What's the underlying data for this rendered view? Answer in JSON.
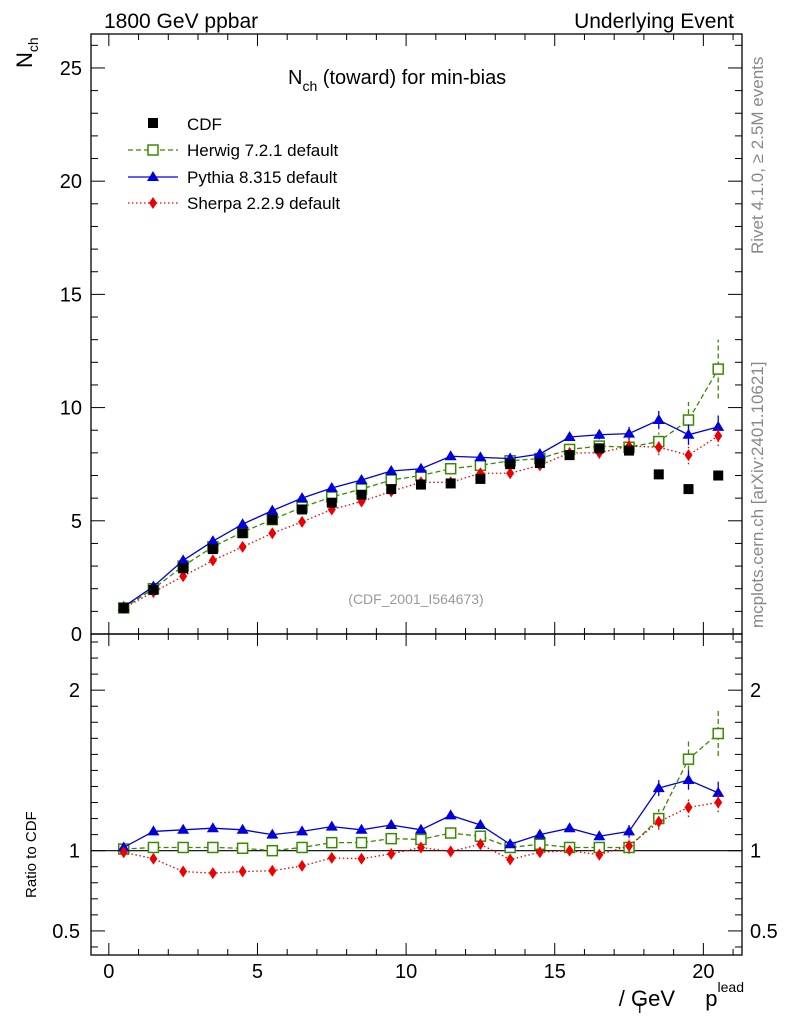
{
  "header": {
    "left": "1800 GeV ppbar",
    "right": "Underlying Event"
  },
  "side_text": {
    "upper": "Rivet 4.1.0, ≥ 2.5M events",
    "lower": "mcplots.cern.ch [arXiv:2401.10621]"
  },
  "watermark": "(CDF_2001_I564673)",
  "colors": {
    "cdf": "#000000",
    "herwig": "#3a8a00",
    "pythia": "#0000dd",
    "sherpa": "#ee0000"
  },
  "chart_data": [
    {
      "type": "scatter",
      "title": {
        "main": "N",
        "sub": "ch",
        "rest": " (toward) for min-bias"
      },
      "ylabel": {
        "main": "N",
        "sub": "ch"
      },
      "xlim": [
        -0.6,
        21.3
      ],
      "ylim": [
        0,
        26.5
      ],
      "yticks": [
        "0",
        "5",
        "10",
        "15",
        "20",
        "25"
      ],
      "ytick_values": [
        0,
        5,
        10,
        15,
        20,
        25
      ],
      "x": [
        0.5,
        1.5,
        2.5,
        3.5,
        4.5,
        5.5,
        6.5,
        7.5,
        8.5,
        9.5,
        10.5,
        11.5,
        12.5,
        13.5,
        14.5,
        15.5,
        16.5,
        17.5,
        18.5,
        19.5,
        20.5
      ],
      "series": [
        {
          "name": "CDF",
          "key": "cdf",
          "marker": "square",
          "line": "none",
          "values": [
            1.15,
            1.95,
            2.9,
            3.75,
            4.45,
            5.05,
            5.5,
            5.8,
            6.15,
            6.4,
            6.6,
            6.65,
            6.85,
            7.5,
            7.55,
            7.9,
            8.2,
            8.1,
            7.05,
            6.4,
            7.0
          ]
        },
        {
          "name": "Herwig 7.2.1 default",
          "key": "herwig",
          "marker": "open-square",
          "line": "dashed",
          "values": [
            1.15,
            2.0,
            3.0,
            3.85,
            4.5,
            5.05,
            5.6,
            6.05,
            6.4,
            6.8,
            7.0,
            7.3,
            7.45,
            7.65,
            7.75,
            8.15,
            8.3,
            8.25,
            8.5,
            9.45,
            11.7
          ],
          "errors": [
            0.05,
            0.05,
            0.05,
            0.05,
            0.05,
            0.05,
            0.05,
            0.05,
            0.05,
            0.05,
            0.05,
            0.05,
            0.05,
            0.1,
            0.1,
            0.15,
            0.2,
            0.3,
            0.4,
            0.8,
            1.3
          ]
        },
        {
          "name": "Pythia 8.315 default",
          "key": "pythia",
          "marker": "triangle",
          "line": "solid",
          "values": [
            1.2,
            2.1,
            3.25,
            4.1,
            4.85,
            5.45,
            6.0,
            6.45,
            6.8,
            7.2,
            7.3,
            7.85,
            7.8,
            7.75,
            7.95,
            8.7,
            8.8,
            8.85,
            9.45,
            8.8,
            9.15
          ],
          "errors": [
            0.05,
            0.05,
            0.05,
            0.05,
            0.05,
            0.05,
            0.05,
            0.05,
            0.05,
            0.05,
            0.05,
            0.05,
            0.05,
            0.1,
            0.1,
            0.15,
            0.2,
            0.3,
            0.4,
            0.45,
            0.5
          ]
        },
        {
          "name": "Sherpa 2.2.9 default",
          "key": "sherpa",
          "marker": "diamond",
          "line": "dotted",
          "values": [
            1.15,
            1.85,
            2.55,
            3.25,
            3.85,
            4.45,
            4.95,
            5.5,
            5.85,
            6.3,
            6.7,
            6.7,
            7.1,
            7.1,
            7.45,
            8.0,
            8.0,
            8.3,
            8.25,
            7.9,
            8.75
          ],
          "errors": [
            0.05,
            0.05,
            0.05,
            0.05,
            0.05,
            0.05,
            0.05,
            0.05,
            0.05,
            0.05,
            0.05,
            0.05,
            0.1,
            0.1,
            0.1,
            0.2,
            0.25,
            0.3,
            0.35,
            0.4,
            0.45
          ]
        }
      ],
      "legend": [
        "CDF",
        "Herwig 7.2.1 default",
        "Pythia 8.315 default",
        "Sherpa 2.2.9 default"
      ],
      "legend_position": "top-left"
    },
    {
      "type": "line",
      "ylabel": "Ratio to CDF",
      "xlabel": {
        "main": "p",
        "sub": "T",
        "sup": "lead",
        "rest": " / GeV"
      },
      "xlim": [
        -0.6,
        21.3
      ],
      "ylim": [
        0.35,
        2.35
      ],
      "xticks": [
        "0",
        "5",
        "10",
        "15",
        "20"
      ],
      "xtick_values": [
        0,
        5,
        10,
        15,
        20
      ],
      "yticks": [
        "0.5",
        "1",
        "2"
      ],
      "ytick_values": [
        0.5,
        1,
        2
      ],
      "reference": 1.0,
      "x": [
        0.5,
        1.5,
        2.5,
        3.5,
        4.5,
        5.5,
        6.5,
        7.5,
        8.5,
        9.5,
        10.5,
        11.5,
        12.5,
        13.5,
        14.5,
        15.5,
        16.5,
        17.5,
        18.5,
        19.5,
        20.5
      ],
      "series": [
        {
          "name": "Herwig 7.2.1 default",
          "key": "herwig",
          "marker": "open-square",
          "line": "dashed",
          "values": [
            1.01,
            1.02,
            1.02,
            1.02,
            1.015,
            1.0,
            1.02,
            1.05,
            1.05,
            1.075,
            1.07,
            1.11,
            1.09,
            1.02,
            1.04,
            1.02,
            1.02,
            1.02,
            1.2,
            1.57,
            1.73
          ],
          "errors": [
            0.01,
            0.01,
            0.01,
            0.01,
            0.01,
            0.01,
            0.01,
            0.01,
            0.01,
            0.01,
            0.01,
            0.01,
            0.01,
            0.015,
            0.015,
            0.02,
            0.025,
            0.04,
            0.06,
            0.12,
            0.14
          ]
        },
        {
          "name": "Pythia 8.315 default",
          "key": "pythia",
          "marker": "triangle",
          "line": "solid",
          "values": [
            1.02,
            1.12,
            1.13,
            1.14,
            1.13,
            1.1,
            1.12,
            1.15,
            1.13,
            1.16,
            1.13,
            1.22,
            1.16,
            1.04,
            1.1,
            1.14,
            1.09,
            1.12,
            1.39,
            1.44,
            1.36
          ],
          "errors": [
            0.01,
            0.01,
            0.01,
            0.01,
            0.01,
            0.01,
            0.01,
            0.01,
            0.01,
            0.01,
            0.01,
            0.01,
            0.01,
            0.015,
            0.015,
            0.02,
            0.025,
            0.04,
            0.05,
            0.06,
            0.07
          ]
        },
        {
          "name": "Sherpa 2.2.9 default",
          "key": "sherpa",
          "marker": "diamond",
          "line": "dotted",
          "values": [
            0.99,
            0.95,
            0.87,
            0.86,
            0.87,
            0.875,
            0.905,
            0.955,
            0.95,
            0.98,
            1.02,
            0.995,
            1.04,
            0.945,
            0.99,
            1.0,
            0.975,
            1.03,
            1.18,
            1.27,
            1.3
          ],
          "errors": [
            0.01,
            0.01,
            0.01,
            0.01,
            0.01,
            0.01,
            0.01,
            0.01,
            0.01,
            0.01,
            0.01,
            0.01,
            0.015,
            0.015,
            0.015,
            0.025,
            0.03,
            0.04,
            0.05,
            0.06,
            0.06
          ]
        }
      ]
    }
  ]
}
